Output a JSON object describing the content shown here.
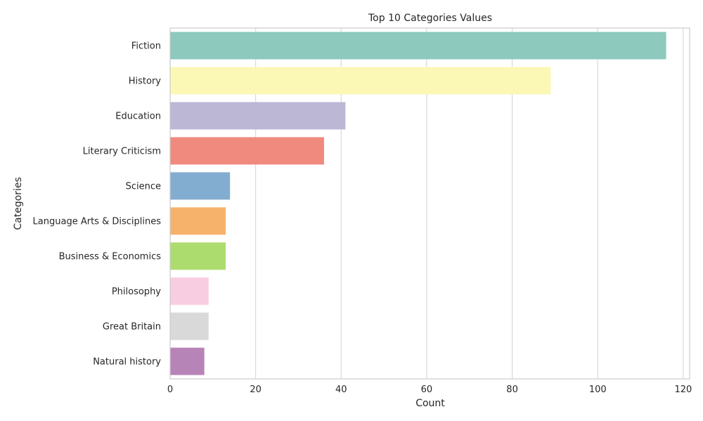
{
  "chart_data": {
    "type": "bar",
    "orientation": "horizontal",
    "title": "Top 10 Categories Values",
    "xlabel": "Count",
    "ylabel": "Categories",
    "xlim": [
      0,
      121.5
    ],
    "xticks": [
      0,
      20,
      40,
      60,
      80,
      100,
      120
    ],
    "grid": "vertical",
    "legend": "none",
    "categories": [
      "Fiction",
      "History",
      "Education",
      "Literary Criticism",
      "Science",
      "Language Arts & Disciplines",
      "Business & Economics",
      "Philosophy",
      "Great Britain",
      "Natural history"
    ],
    "values": [
      116,
      89,
      41,
      36,
      14,
      13,
      13,
      9,
      9,
      8
    ],
    "colors": [
      "#8dc9bd",
      "#fbf7b5",
      "#bdb7d6",
      "#f08a7e",
      "#83add0",
      "#f6b26b",
      "#addc6e",
      "#f8cde2",
      "#d9d9d9",
      "#b784b7"
    ]
  }
}
